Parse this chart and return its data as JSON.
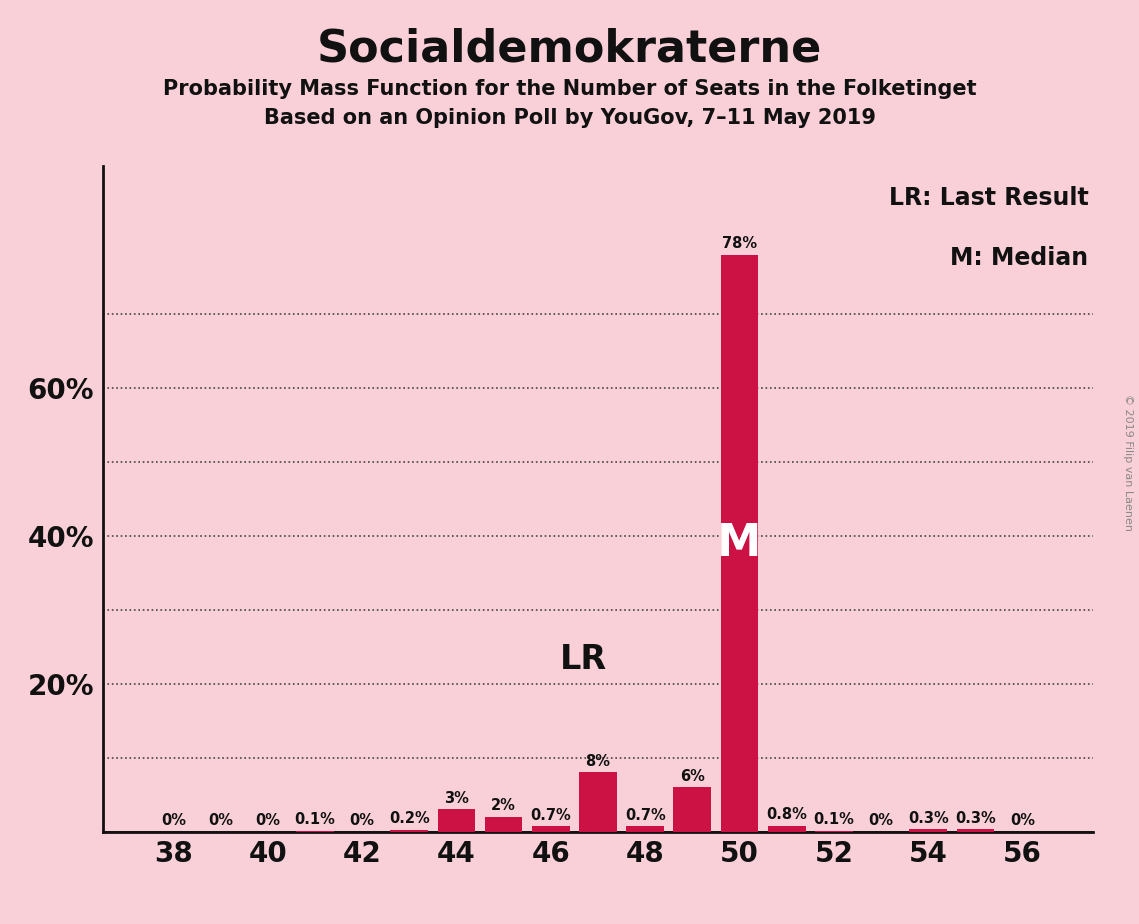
{
  "title": "Socialdemokraterne",
  "subtitle1": "Probability Mass Function for the Number of Seats in the Folketinget",
  "subtitle2": "Based on an Opinion Poll by YouGov, 7–11 May 2019",
  "watermark": "© 2019 Filip van Laenen",
  "background_color": "#f9d0d8",
  "bar_color": "#cc1144",
  "seats": [
    38,
    39,
    40,
    41,
    42,
    43,
    44,
    45,
    46,
    47,
    48,
    49,
    50,
    51,
    52,
    53,
    54,
    55,
    56
  ],
  "values": [
    0.0,
    0.0,
    0.0,
    0.1,
    0.0,
    0.2,
    3.0,
    2.0,
    0.7,
    8.0,
    0.7,
    6.0,
    78.0,
    0.8,
    0.1,
    0.0,
    0.3,
    0.3,
    0.0
  ],
  "labels": [
    "0%",
    "0%",
    "0%",
    "0.1%",
    "0%",
    "0.2%",
    "3%",
    "2%",
    "0.7%",
    "8%",
    "0.7%",
    "6%",
    "78%",
    "0.8%",
    "0.1%",
    "0%",
    "0.3%",
    "0.3%",
    "0%"
  ],
  "last_result_seat": 47,
  "median_seat": 50,
  "xlim": [
    36.5,
    57.5
  ],
  "ylim": [
    0,
    90
  ],
  "xticks": [
    38,
    40,
    42,
    44,
    46,
    48,
    50,
    52,
    54,
    56
  ],
  "legend_lr": "LR: Last Result",
  "legend_m": "M: Median"
}
